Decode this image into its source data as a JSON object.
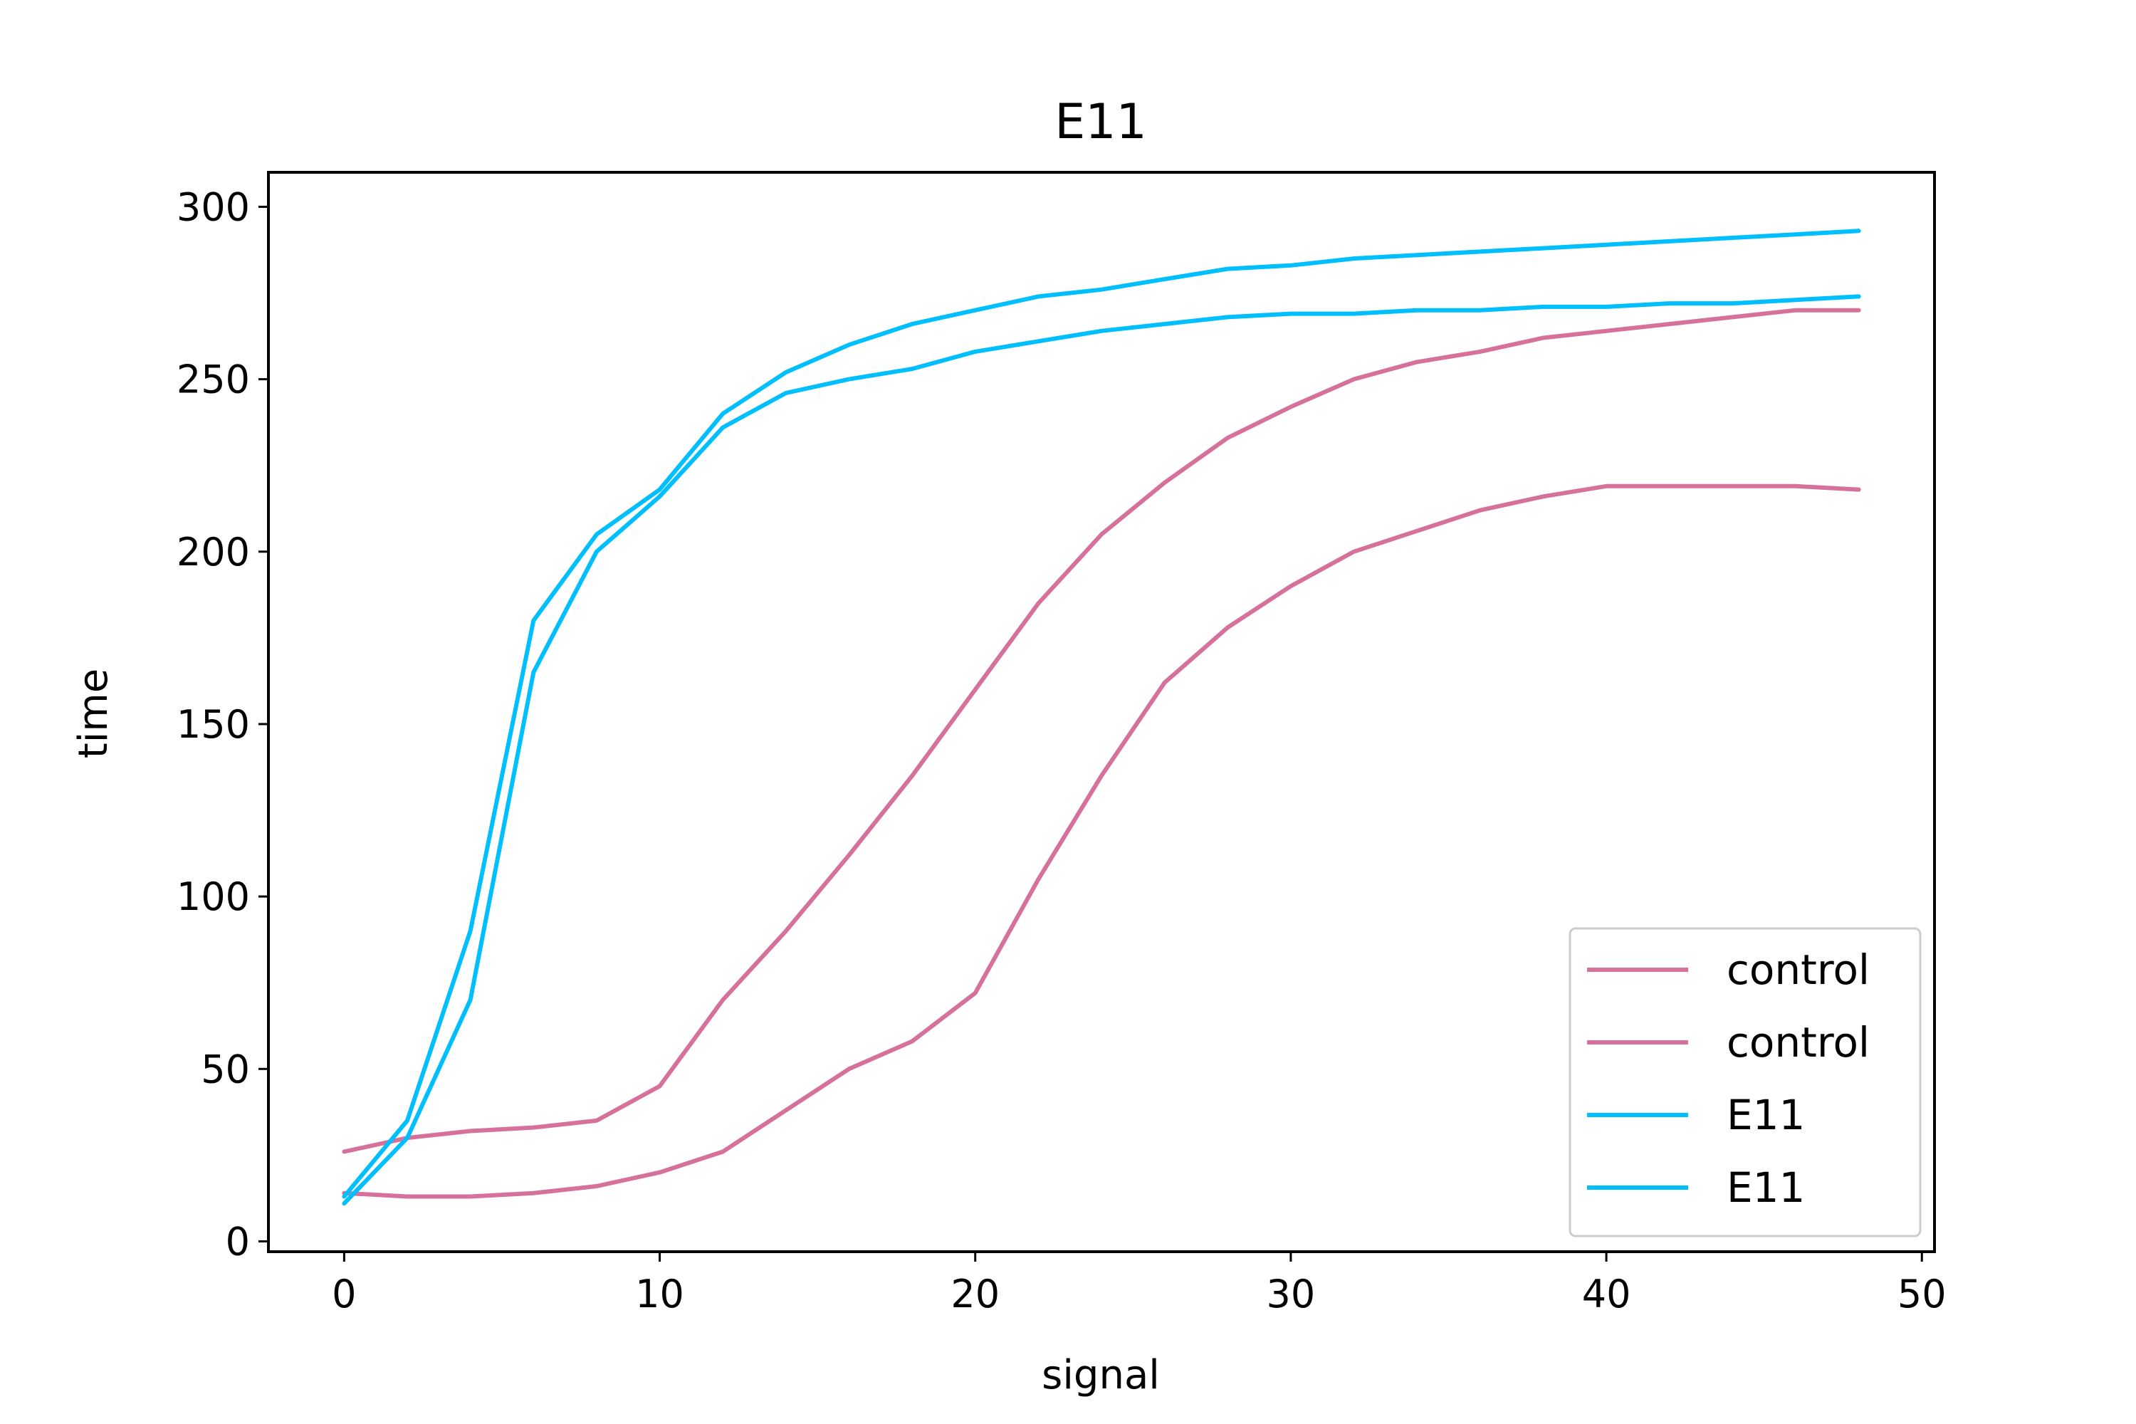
{
  "chart_data": {
    "type": "line",
    "title": "E11",
    "xlabel": "signal",
    "ylabel": "time",
    "xlim": [
      -2.4,
      50.4
    ],
    "ylim": [
      -3,
      310
    ],
    "x_ticks": [
      0,
      10,
      20,
      30,
      40,
      50
    ],
    "y_ticks": [
      0,
      50,
      100,
      150,
      200,
      250,
      300
    ],
    "grid": false,
    "legend_position": "lower-right",
    "x": [
      0,
      2,
      4,
      6,
      8,
      10,
      12,
      14,
      16,
      18,
      20,
      22,
      24,
      26,
      28,
      30,
      32,
      34,
      36,
      38,
      40,
      42,
      44,
      46,
      48
    ],
    "series": [
      {
        "name": "control",
        "color": "#d6719b",
        "values": [
          26,
          30,
          32,
          33,
          35,
          45,
          70,
          90,
          112,
          135,
          160,
          185,
          205,
          220,
          233,
          242,
          250,
          255,
          258,
          262,
          264,
          266,
          268,
          270,
          270
        ]
      },
      {
        "name": "control",
        "color": "#d6719b",
        "values": [
          14,
          13,
          13,
          14,
          16,
          20,
          26,
          38,
          50,
          58,
          72,
          105,
          135,
          162,
          178,
          190,
          200,
          206,
          212,
          216,
          219,
          219,
          219,
          219,
          218
        ]
      },
      {
        "name": "E11",
        "color": "#00bfff",
        "values": [
          13,
          35,
          90,
          180,
          205,
          218,
          240,
          252,
          260,
          266,
          270,
          274,
          276,
          279,
          282,
          283,
          285,
          286,
          287,
          288,
          289,
          290,
          291,
          292,
          293
        ]
      },
      {
        "name": "E11",
        "color": "#00bfff",
        "values": [
          11,
          30,
          70,
          165,
          200,
          216,
          236,
          246,
          250,
          253,
          258,
          261,
          264,
          266,
          268,
          269,
          269,
          270,
          270,
          271,
          271,
          272,
          272,
          273,
          274
        ]
      }
    ]
  }
}
